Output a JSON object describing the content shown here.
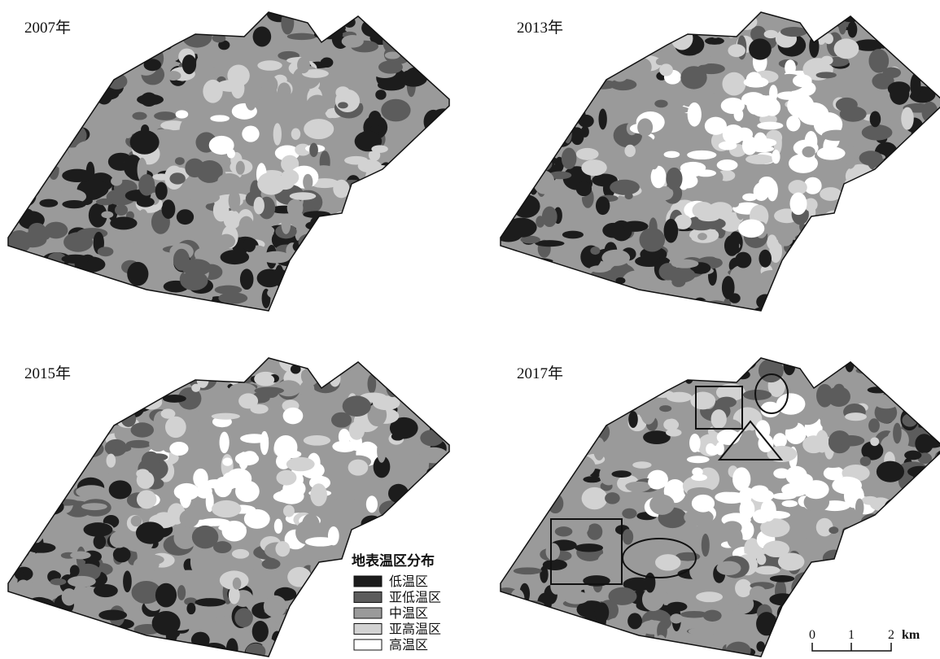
{
  "panels": [
    {
      "title": "2007年"
    },
    {
      "title": "2013年"
    },
    {
      "title": "2015年"
    },
    {
      "title": "2017年"
    }
  ],
  "legend": {
    "title": "地表温区分布",
    "items": [
      {
        "label": "低温区",
        "color": "#1c1c1c"
      },
      {
        "label": "亚低温区",
        "color": "#5c5c5c"
      },
      {
        "label": "中温区",
        "color": "#9a9a9a"
      },
      {
        "label": "亚高温区",
        "color": "#d2d2d2"
      },
      {
        "label": "高温区",
        "color": "#ffffff"
      }
    ]
  },
  "scale_bar": {
    "ticks": [
      "0",
      "1",
      "2"
    ],
    "unit": "km"
  }
}
